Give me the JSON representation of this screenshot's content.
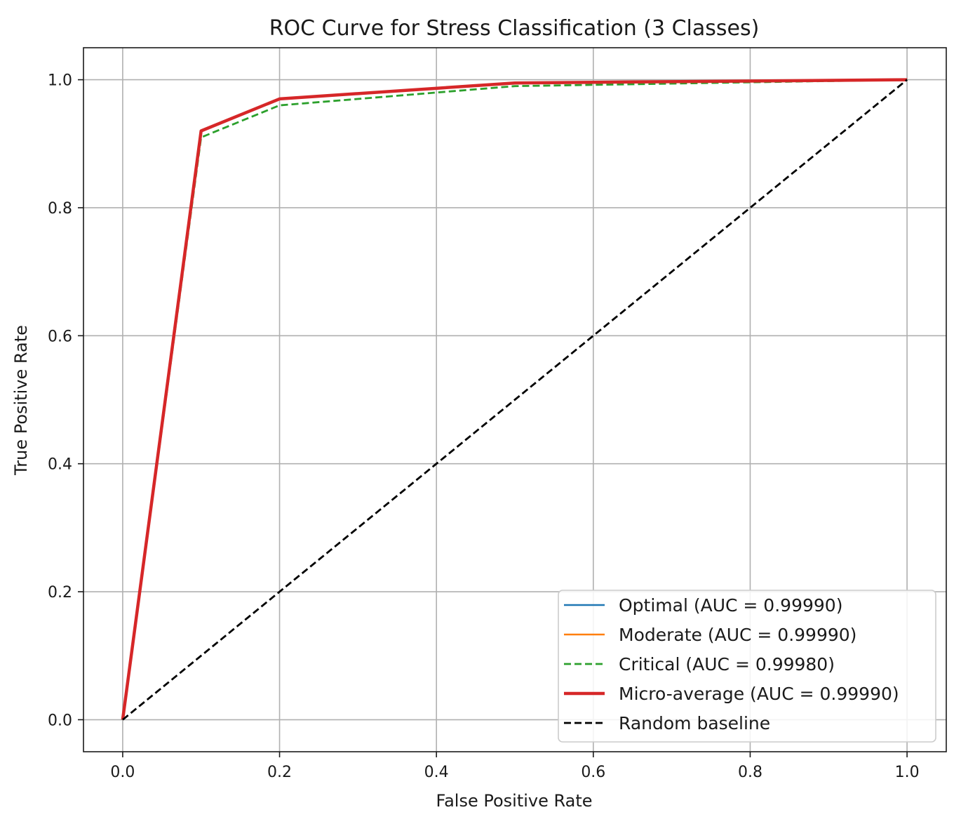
{
  "chart_data": {
    "type": "line",
    "title": "ROC Curve for Stress Classification (3 Classes)",
    "xlabel": "False Positive Rate",
    "ylabel": "True Positive Rate",
    "xlim": [
      -0.05,
      1.05
    ],
    "ylim": [
      -0.05,
      1.05
    ],
    "grid": true,
    "legend_position": "bottom-right",
    "x_ticks": [
      0.0,
      0.2,
      0.4,
      0.6,
      0.8,
      1.0
    ],
    "x_tick_labels": [
      "0.0",
      "0.2",
      "0.4",
      "0.6",
      "0.8",
      "1.0"
    ],
    "y_ticks": [
      0.0,
      0.2,
      0.4,
      0.6,
      0.8,
      1.0
    ],
    "y_tick_labels": [
      "0.0",
      "0.2",
      "0.4",
      "0.6",
      "0.8",
      "1.0"
    ],
    "series": [
      {
        "name": "Optimal (AUC = 0.99990)",
        "color": "#1f77b4",
        "style": "solid",
        "x": [
          0.0,
          0.1,
          0.2,
          0.5,
          1.0
        ],
        "y": [
          0.0,
          0.92,
          0.97,
          0.995,
          1.0
        ]
      },
      {
        "name": "Moderate (AUC = 0.99990)",
        "color": "#ff7f0e",
        "style": "solid",
        "x": [
          0.0,
          0.1,
          0.2,
          0.5,
          1.0
        ],
        "y": [
          0.0,
          0.92,
          0.97,
          0.995,
          1.0
        ]
      },
      {
        "name": "Critical (AUC = 0.99980)",
        "color": "#2ca02c",
        "style": "dashed",
        "x": [
          0.0,
          0.1,
          0.2,
          0.5,
          1.0
        ],
        "y": [
          0.0,
          0.91,
          0.96,
          0.99,
          1.0
        ]
      },
      {
        "name": "Micro-average (AUC = 0.99990)",
        "color": "#d62728",
        "style": "solid-thick",
        "x": [
          0.0,
          0.1,
          0.2,
          0.5,
          1.0
        ],
        "y": [
          0.0,
          0.92,
          0.97,
          0.995,
          1.0
        ]
      },
      {
        "name": "Random baseline",
        "color": "#000000",
        "style": "dashed",
        "x": [
          0.0,
          1.0
        ],
        "y": [
          0.0,
          1.0
        ]
      }
    ]
  }
}
